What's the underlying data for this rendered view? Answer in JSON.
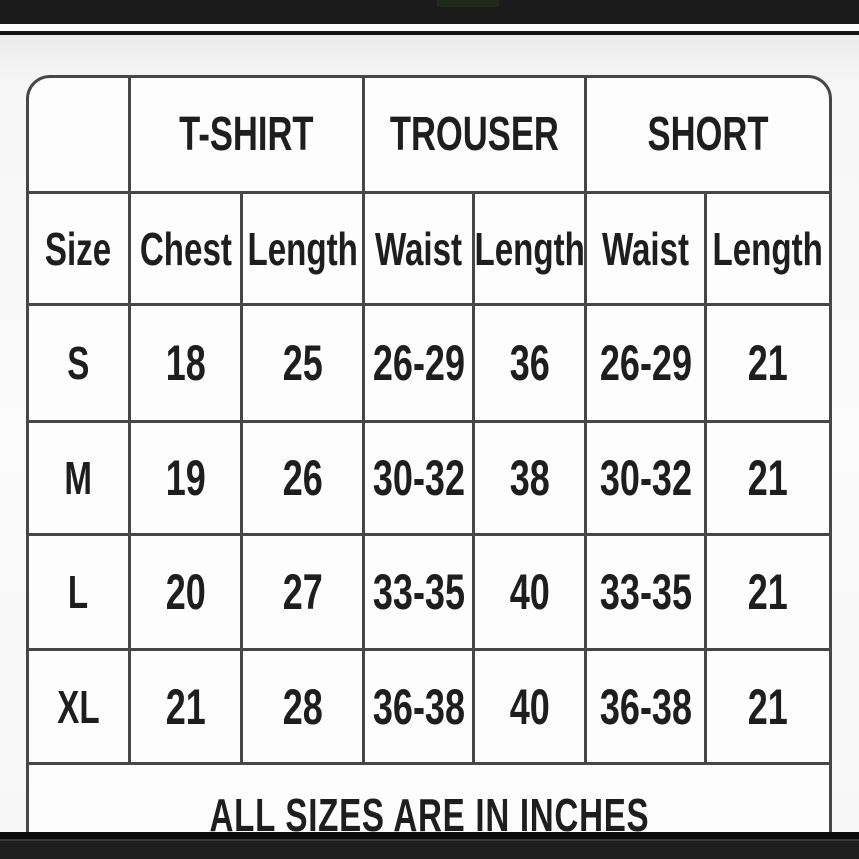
{
  "page": {
    "top_bar_color": "#1b1b1b",
    "bottom_bar_color": "#1e1e1e",
    "border_color": "#474747",
    "text_color": "#1e1e1e",
    "table_background": "#fdfdfd"
  },
  "size_chart": {
    "corner_cell": "",
    "groups": [
      {
        "label": "T-SHIRT"
      },
      {
        "label": "TROUSER"
      },
      {
        "label": "SHORT"
      }
    ],
    "columns": [
      "Size",
      "Chest",
      "Length",
      "Waist",
      "Length",
      "Waist",
      "Length"
    ],
    "rows": [
      {
        "size": "S",
        "values": [
          "18",
          "25",
          "26-29",
          "36",
          "26-29",
          "21"
        ]
      },
      {
        "size": "M",
        "values": [
          "19",
          "26",
          "30-32",
          "38",
          "30-32",
          "21"
        ]
      },
      {
        "size": "L",
        "values": [
          "20",
          "27",
          "33-35",
          "40",
          "33-35",
          "21"
        ]
      },
      {
        "size": "XL",
        "values": [
          "21",
          "28",
          "36-38",
          "40",
          "36-38",
          "21"
        ]
      }
    ],
    "footer_note": "ALL SIZES ARE IN INCHES"
  }
}
